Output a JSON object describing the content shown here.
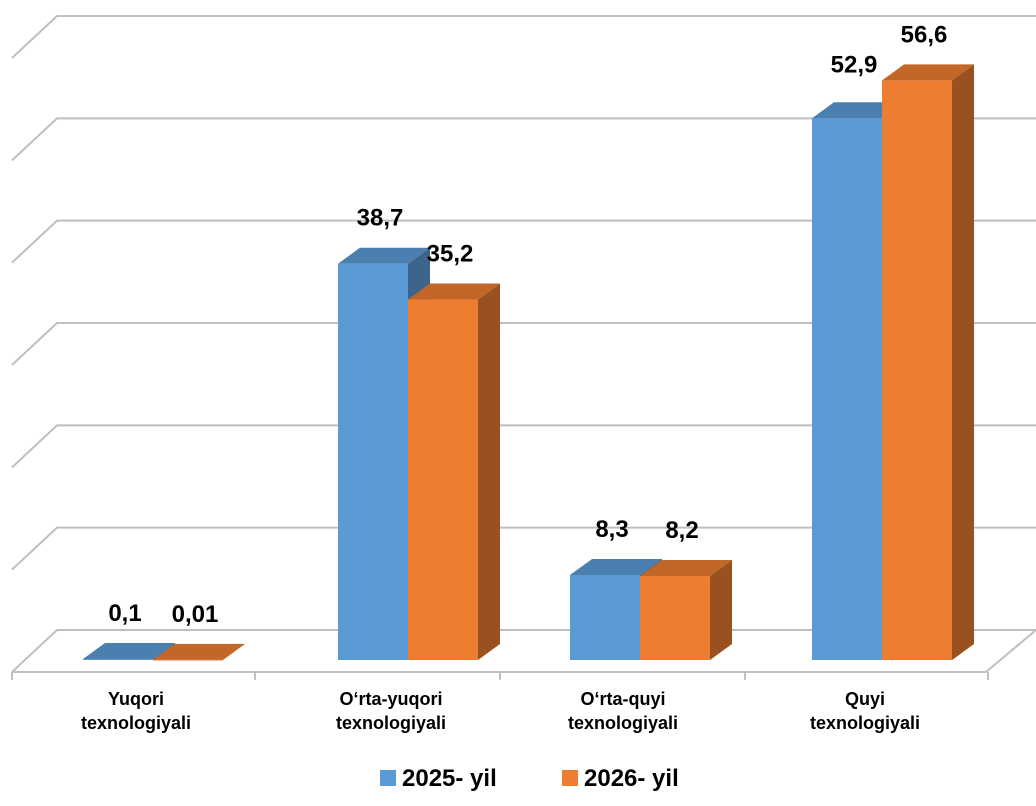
{
  "chart_data": {
    "type": "bar",
    "title": "",
    "xlabel": "",
    "ylabel": "",
    "ylim": [
      0,
      60
    ],
    "grid": true,
    "legend_position": "bottom",
    "categories": [
      [
        "Yuqori",
        "texnologiyali"
      ],
      [
        "O‘rta-yuqori",
        "texnologiyali"
      ],
      [
        "O‘rta-quyi",
        "texnologiyali"
      ],
      [
        "Quyi",
        "texnologiyali"
      ]
    ],
    "series": [
      {
        "name": "2025- yil",
        "color": "#5B9BD5",
        "values": [
          0.1,
          38.7,
          8.3,
          52.9
        ],
        "labels": [
          "0,1",
          "38,7",
          "8,3",
          "52,9"
        ]
      },
      {
        "name": "2026- yil",
        "color": "#ED7D31",
        "values": [
          0.01,
          35.2,
          8.2,
          56.6
        ],
        "labels": [
          "0,01",
          "35,2",
          "8,2",
          "56,6"
        ]
      }
    ]
  }
}
